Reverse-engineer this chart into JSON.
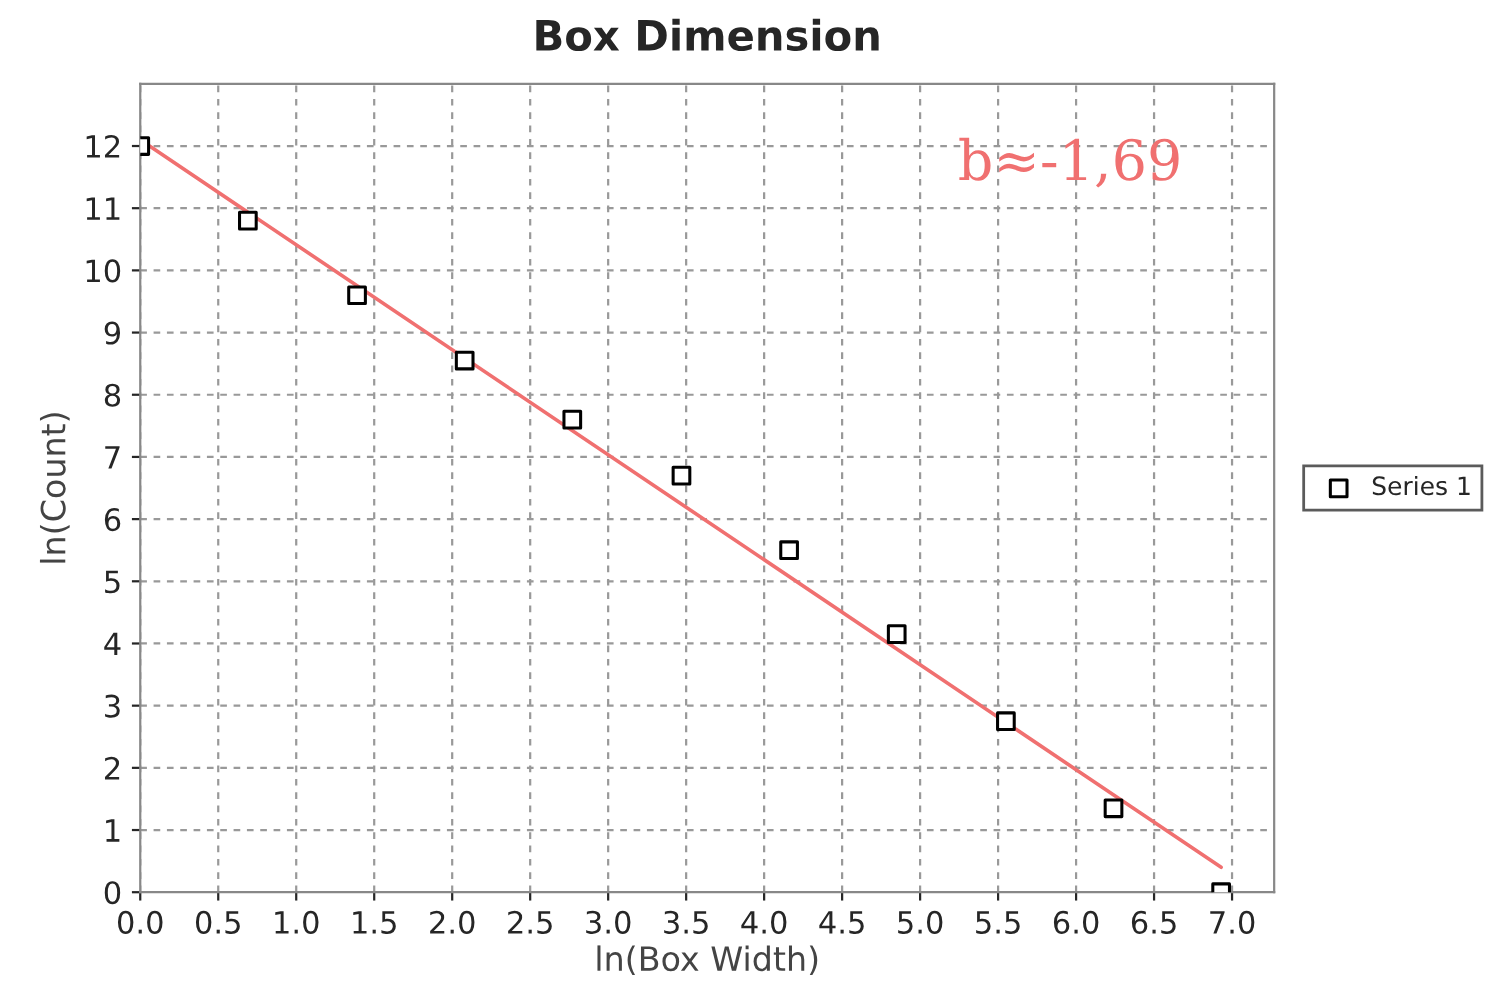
{
  "chart_data": {
    "type": "scatter",
    "title": "Box Dimension",
    "xlabel": "ln(Box Width)",
    "ylabel": "ln(Count)",
    "xlim": [
      0,
      7.27
    ],
    "ylim": [
      0,
      13
    ],
    "xticks": [
      {
        "value": 0,
        "label": "0.0"
      },
      {
        "value": 0.5,
        "label": "0.5"
      },
      {
        "value": 1,
        "label": "1.0"
      },
      {
        "value": 1.5,
        "label": "1.5"
      },
      {
        "value": 2,
        "label": "2.0"
      },
      {
        "value": 2.5,
        "label": "2.5"
      },
      {
        "value": 3,
        "label": "3.0"
      },
      {
        "value": 3.5,
        "label": "3.5"
      },
      {
        "value": 4,
        "label": "4.0"
      },
      {
        "value": 4.5,
        "label": "4.5"
      },
      {
        "value": 5,
        "label": "5.0"
      },
      {
        "value": 5.5,
        "label": "5.5"
      },
      {
        "value": 6,
        "label": "6.0"
      },
      {
        "value": 6.5,
        "label": "6.5"
      },
      {
        "value": 7,
        "label": "7.0"
      }
    ],
    "yticks": [
      0,
      1,
      2,
      3,
      4,
      5,
      6,
      7,
      8,
      9,
      10,
      11,
      12
    ],
    "grid": true,
    "legend": "right",
    "series": [
      {
        "name": "Series 1",
        "marker": "square",
        "color": "#000000",
        "x": [
          0,
          0.69,
          1.39,
          2.08,
          2.77,
          3.47,
          4.16,
          4.85,
          5.55,
          6.24,
          6.93
        ],
        "values": [
          12.0,
          10.8,
          9.6,
          8.55,
          7.6,
          6.7,
          5.5,
          4.15,
          2.75,
          1.35,
          0.0
        ]
      },
      {
        "type": "line",
        "marker": "none",
        "color": "#f07070",
        "x": [
          0,
          6.93
        ],
        "values": [
          12.1,
          0.4
        ]
      }
    ],
    "annotations": [
      "b≈-1,69"
    ]
  }
}
